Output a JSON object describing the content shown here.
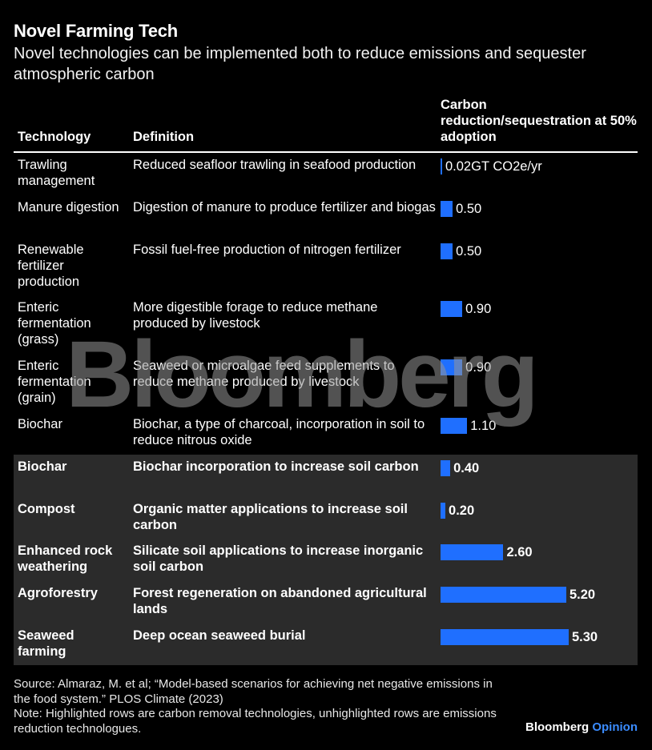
{
  "title": "Novel Farming Tech",
  "subtitle": "Novel technologies can be implemented both to reduce emissions and sequester atmospheric carbon",
  "columns": {
    "technology": "Technology",
    "definition": "Definition",
    "value": "Carbon reduction/sequestration at 50% adoption"
  },
  "chart_data": {
    "type": "bar",
    "orientation": "horizontal",
    "unit": "GT CO2e/yr",
    "xlim": [
      0,
      5.3
    ],
    "rows": [
      {
        "technology": "Trawling management",
        "definition": "Reduced seafloor trawling in seafood production",
        "value": 0.02,
        "label": "0.02GT CO2e/yr",
        "highlighted": false
      },
      {
        "technology": "Manure digestion",
        "definition": "Digestion of manure to produce fertilizer and biogas",
        "value": 0.5,
        "label": "0.50",
        "highlighted": false
      },
      {
        "technology": "Renewable fertilizer production",
        "definition": "Fossil fuel-free production of nitrogen fertilizer",
        "value": 0.5,
        "label": "0.50",
        "highlighted": false
      },
      {
        "technology": "Enteric fermentation (grass)",
        "definition": "More digestible forage to reduce methane produced by livestock",
        "value": 0.9,
        "label": "0.90",
        "highlighted": false
      },
      {
        "technology": "Enteric fermentation (grain)",
        "definition": "Seaweed or microalgae feed supplements to reduce methane produced by livestock",
        "value": 0.9,
        "label": "0.90",
        "highlighted": false
      },
      {
        "technology": "Biochar",
        "definition": "Biochar, a type of charcoal, incorporation in soil to reduce nitrous oxide",
        "value": 1.1,
        "label": "1.10",
        "highlighted": false
      },
      {
        "technology": "Biochar",
        "definition": "Biochar incorporation to increase soil carbon",
        "value": 0.4,
        "label": "0.40",
        "highlighted": true
      },
      {
        "technology": "Compost",
        "definition": "Organic matter applications to increase soil carbon",
        "value": 0.2,
        "label": "0.20",
        "highlighted": true
      },
      {
        "technology": "Enhanced rock weathering",
        "definition": "Silicate soil applications to increase inorganic soil carbon",
        "value": 2.6,
        "label": "2.60",
        "highlighted": true
      },
      {
        "technology": "Agroforestry",
        "definition": "Forest regeneration on abandoned agricultural lands",
        "value": 5.2,
        "label": "5.20",
        "highlighted": true
      },
      {
        "technology": "Seaweed farming",
        "definition": "Deep ocean seaweed burial",
        "value": 5.3,
        "label": "5.30",
        "highlighted": true
      }
    ]
  },
  "colors": {
    "background": "#000000",
    "bar": "#1f6fff",
    "highlight_band": "#2b2b2b",
    "opinion": "#3b8cff"
  },
  "watermark": "Bloomberg",
  "source": "Source: Almaraz, M. et al; “Model-based scenarios for achieving net negative emissions in the food system.” PLOS Climate (2023)",
  "note": "Note: Highlighted rows are carbon removal technologies, unhighlighted rows are emissions reduction technologues.",
  "brand": {
    "name": "Bloomberg",
    "suffix": "Opinion"
  }
}
